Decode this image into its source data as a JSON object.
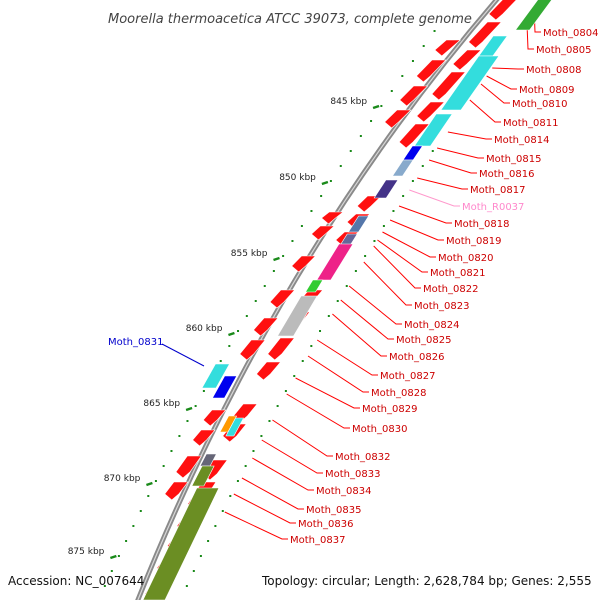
{
  "title": "Moorella thermoacetica ATCC 39073, complete genome",
  "footer": {
    "accession": "Accession: NC_007644",
    "stats": "Topology: circular; Length: 2,628,784 bp; Genes: 2,555"
  },
  "colors": {
    "cds": "#ff1010",
    "backbone": "#909090",
    "leader_right": "#ff0000",
    "leader_trna": "#ff99cc",
    "leader_left": "#0000cc",
    "tick": "#1a8a1a",
    "label_right": "#cc0000",
    "label_trna": "#ff88cc",
    "label_left": "#0000cc"
  },
  "kbp_ticks": [
    "845 kbp",
    "850 kbp",
    "855 kbp",
    "860 kbp",
    "865 kbp",
    "870 kbp",
    "875 kbp"
  ],
  "gene_labels_right": [
    "Moth_0804",
    "Moth_0805",
    "Moth_0808",
    "Moth_0809",
    "Moth_0810",
    "Moth_0811",
    "Moth_0814",
    "Moth_0815",
    "Moth_0816",
    "Moth_0817",
    "Moth_R0037",
    "Moth_0818",
    "Moth_0819",
    "Moth_0820",
    "Moth_0821",
    "Moth_0822",
    "Moth_0823",
    "Moth_0824",
    "Moth_0825",
    "Moth_0826",
    "Moth_0827",
    "Moth_0828",
    "Moth_0829",
    "Moth_0830",
    "Moth_0832",
    "Moth_0833",
    "Moth_0834",
    "Moth_0835",
    "Moth_0836",
    "Moth_0837"
  ],
  "gene_labels_left": [
    "Moth_0831"
  ]
}
